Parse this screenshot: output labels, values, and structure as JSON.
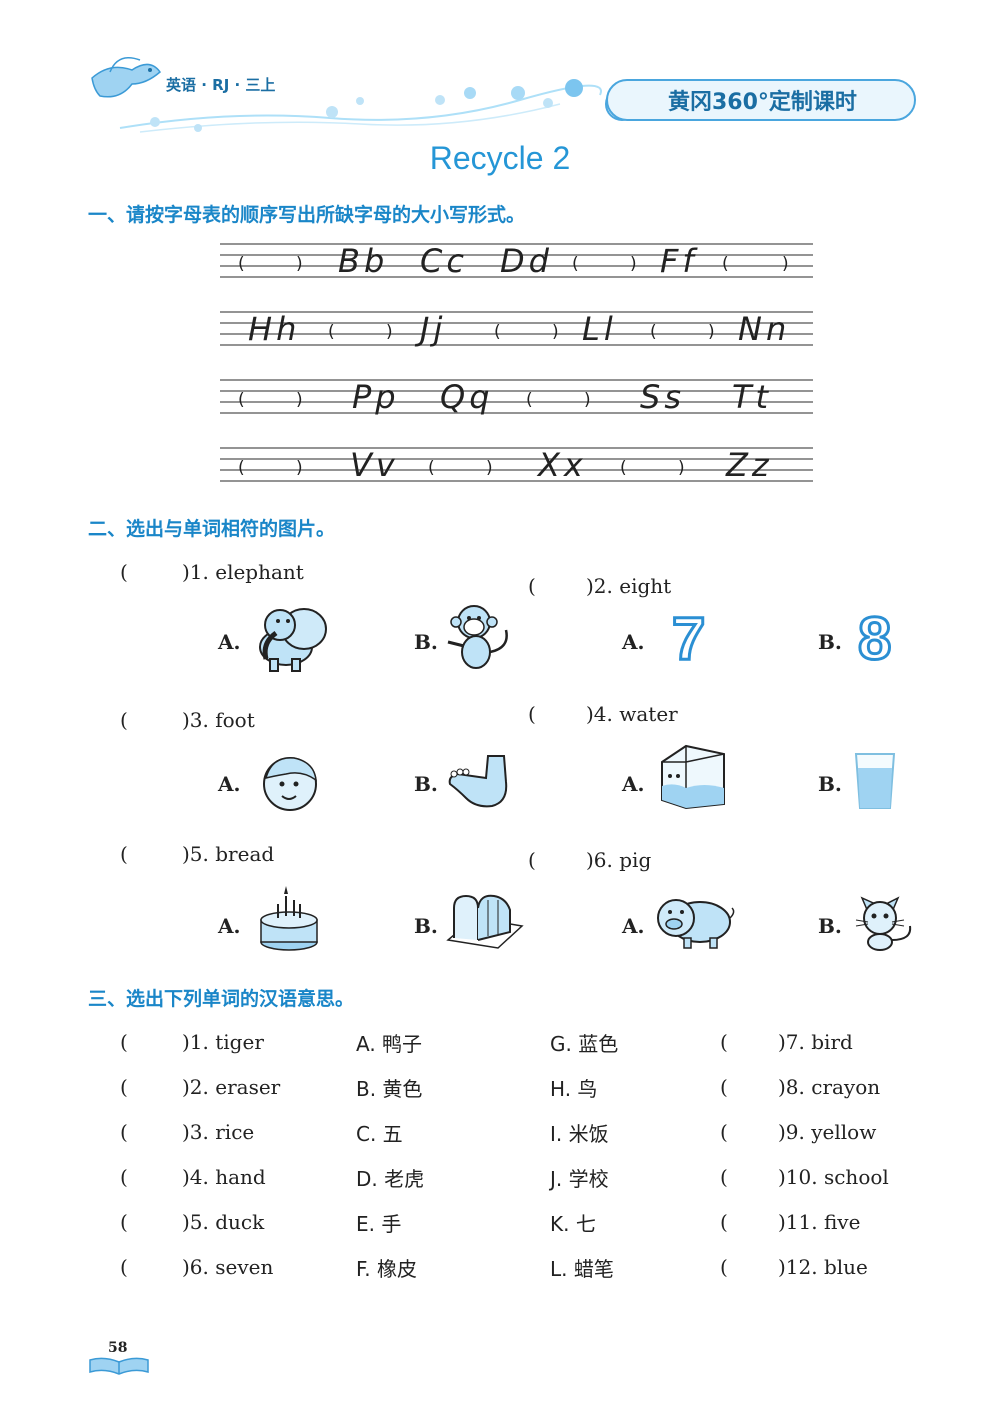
{
  "header": {
    "subject": "英语 · RJ · 三上",
    "series": "黄冈360°定制课时"
  },
  "title": "Recycle 2",
  "section1": {
    "heading": "一、请按字母表的顺序写出所缺字母的大小写形式。",
    "rows": [
      [
        "(",
        ")",
        "Bb",
        "Cc",
        "Dd",
        "(",
        ")",
        "Ff",
        "(",
        ")"
      ],
      [
        "Hh",
        "(",
        ")",
        "Jj",
        "(",
        ")",
        "Ll",
        "(",
        ")",
        "Nn"
      ],
      [
        "(",
        ")",
        "Pp",
        "Qq",
        "(",
        ")",
        "Ss",
        "Tt"
      ],
      [
        "(",
        ")",
        "Vv",
        "(",
        ")",
        "Xx",
        "(",
        ")",
        "Zz"
      ]
    ]
  },
  "section2": {
    "heading": "二、选出与单词相符的图片。",
    "items": [
      {
        "q": ")1. elephant",
        "a": "A.",
        "b": "B."
      },
      {
        "q": ")2. eight",
        "a": "A.",
        "b": "B.",
        "a_num": "7",
        "b_num": "8"
      },
      {
        "q": ")3. foot",
        "a": "A.",
        "b": "B."
      },
      {
        "q": ")4. water",
        "a": "A.",
        "b": "B."
      },
      {
        "q": ")5. bread",
        "a": "A.",
        "b": "B."
      },
      {
        "q": ")6. pig",
        "a": "A.",
        "b": "B."
      }
    ]
  },
  "section3": {
    "heading": "三、选出下列单词的汉语意思。",
    "left_words": [
      ")1. tiger",
      ")2. eraser",
      ")3. rice",
      ")4. hand",
      ")5. duck",
      ")6. seven"
    ],
    "options_a": [
      "A. 鸭子",
      "B. 黄色",
      "C. 五",
      "D. 老虎",
      "E. 手",
      "F. 橡皮"
    ],
    "options_b": [
      "G. 蓝色",
      "H. 鸟",
      "I. 米饭",
      "J. 学校",
      "K. 七",
      "L. 蜡笔"
    ],
    "right_words": [
      ")7. bird",
      ")8. crayon",
      ")9. yellow",
      ")10. school",
      ")11. five",
      ")12. blue"
    ]
  },
  "page_number": "58",
  "colors": {
    "accent": "#1a86c8",
    "light": "#bfe3f7"
  }
}
